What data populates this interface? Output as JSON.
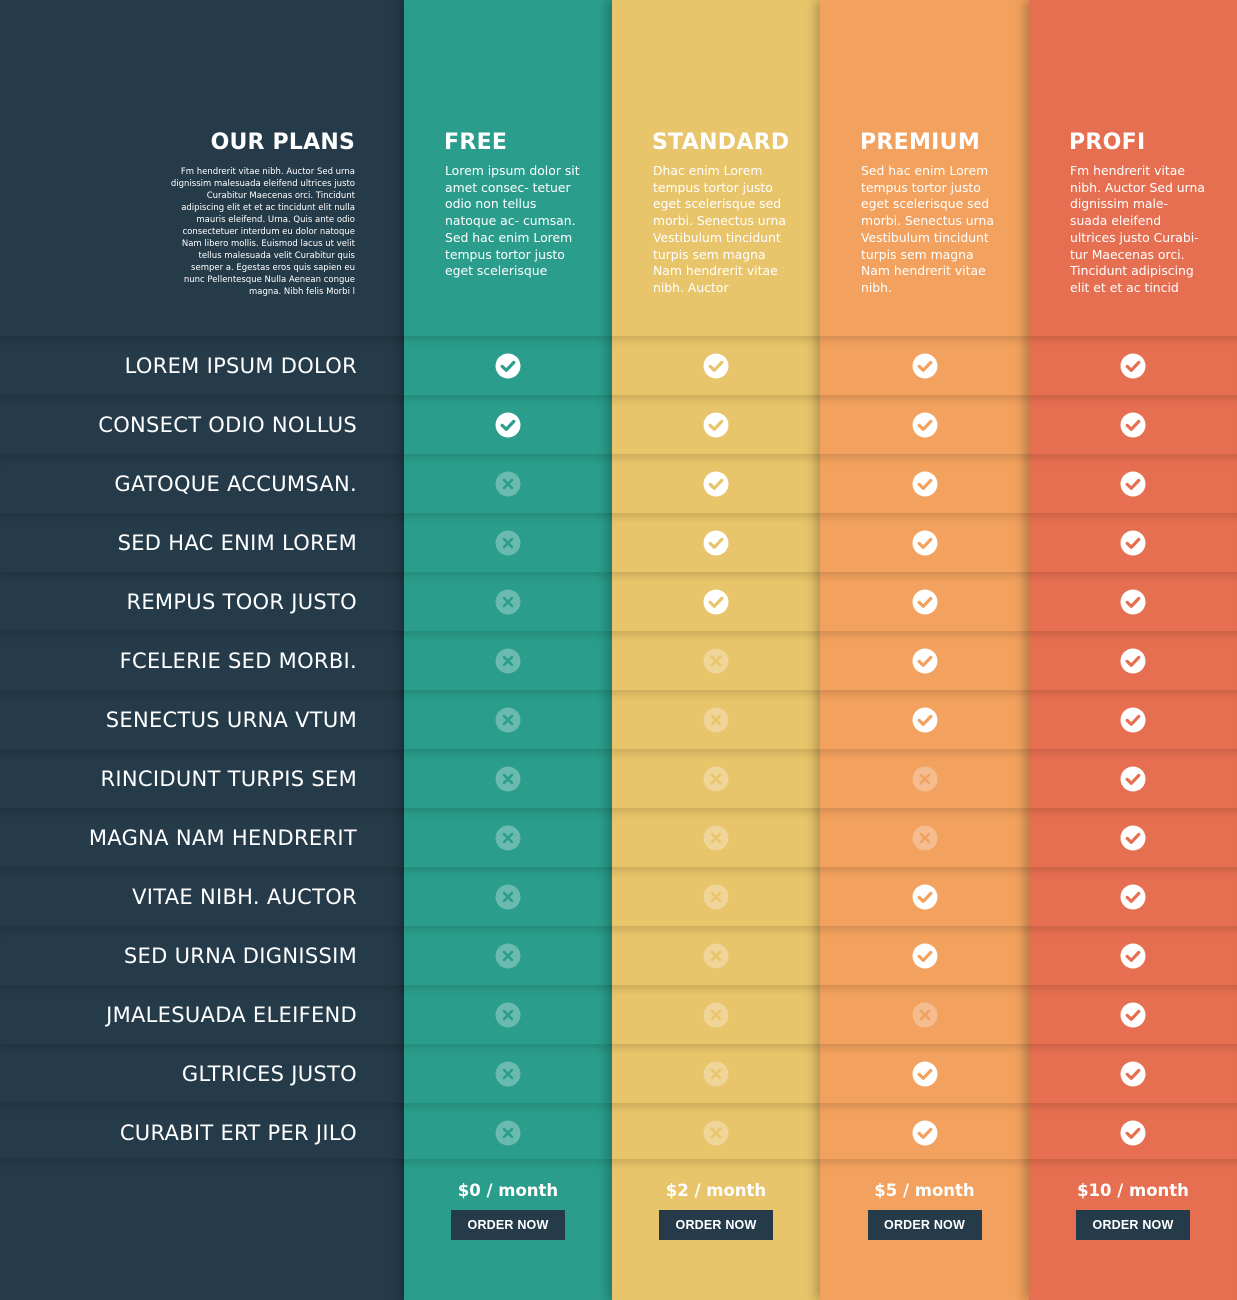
{
  "header": {
    "title": "OUR PLANS",
    "description": "Fm hendrerit vitae nibh. Auctor Sed urna dignissim malesuada eleifend ultrices justo Curabitur Maecenas orci. Tincidunt adipiscing elit et et ac tincidunt elit nulla mauris eleifend. Urna. Quis ante odio consectetuer interdum eu dolor natoque Nam libero mollis. Euismod lacus ut velit tellus malesuada velit Curabitur quis semper a. Egestas eros quis sapien eu nunc Pellentesque Nulla Aenean congue magna. Nibh felis Morbi l"
  },
  "features": [
    "LOREM IPSUM DOLOR",
    "CONSECT ODIO NOLLUS",
    "GATOQUE ACCUMSAN.",
    "SED HAC ENIM LOREM",
    "REMPUS TOOR JUSTO",
    "FCELERIE SED MORBI.",
    "SENECTUS URNA VTUM",
    "RINCIDUNT TURPIS SEM",
    "MAGNA NAM HENDRERIT",
    "VITAE NIBH. AUCTOR",
    "SED URNA DIGNISSIM",
    "JMALESUADA ELEIFEND",
    "GLTRICES JUSTO",
    "CURABIT ERT PER JILO"
  ],
  "plans": [
    {
      "name": "FREE",
      "description": "Lorem ipsum dolor sit amet consec- tetuer odio non tellus natoque ac- cumsan. Sed hac enim Lorem tempus tortor justo eget scelerisque",
      "color": "#2a9d8c",
      "included": [
        true,
        true,
        false,
        false,
        false,
        false,
        false,
        false,
        false,
        false,
        false,
        false,
        false,
        false
      ],
      "price": "$0 / month",
      "button": "ORDER NOW"
    },
    {
      "name": "STANDARD",
      "description": "Dhac enim Lorem tempus tortor justo eget scelerisque sed morbi. Senectus urna Vestibulum tincidunt turpis sem magna Nam hendrerit vitae nibh. Auctor",
      "color": "#e8c46a",
      "included": [
        true,
        true,
        true,
        true,
        true,
        false,
        false,
        false,
        false,
        false,
        false,
        false,
        false,
        false
      ],
      "price": "$2 / month",
      "button": "ORDER NOW"
    },
    {
      "name": "PREMIUM",
      "description": "Sed hac enim Lorem tempus tortor justo eget scelerisque sed morbi. Senectus urna Vestibulum tincidunt turpis sem magna Nam hendrerit vitae nibh.",
      "color": "#f2a15e",
      "included": [
        true,
        true,
        true,
        true,
        true,
        true,
        true,
        false,
        false,
        true,
        true,
        false,
        true,
        true
      ],
      "price": "$5 / month",
      "button": "ORDER NOW"
    },
    {
      "name": "PROFI",
      "description": "Fm hendrerit vitae nibh. Auctor Sed urna dignissim male- suada eleifend ultrices justo Curabi- tur Maecenas orci. Tincidunt adipiscing elit et et ac tincid",
      "color": "#e76f51",
      "included": [
        true,
        true,
        true,
        true,
        true,
        true,
        true,
        true,
        true,
        true,
        true,
        true,
        true,
        true
      ],
      "price": "$10 / month",
      "button": "ORDER NOW"
    }
  ],
  "icons": {
    "included": "check-circle-icon",
    "excluded": "x-circle-icon"
  },
  "colors": {
    "dark": "#253b4a"
  }
}
